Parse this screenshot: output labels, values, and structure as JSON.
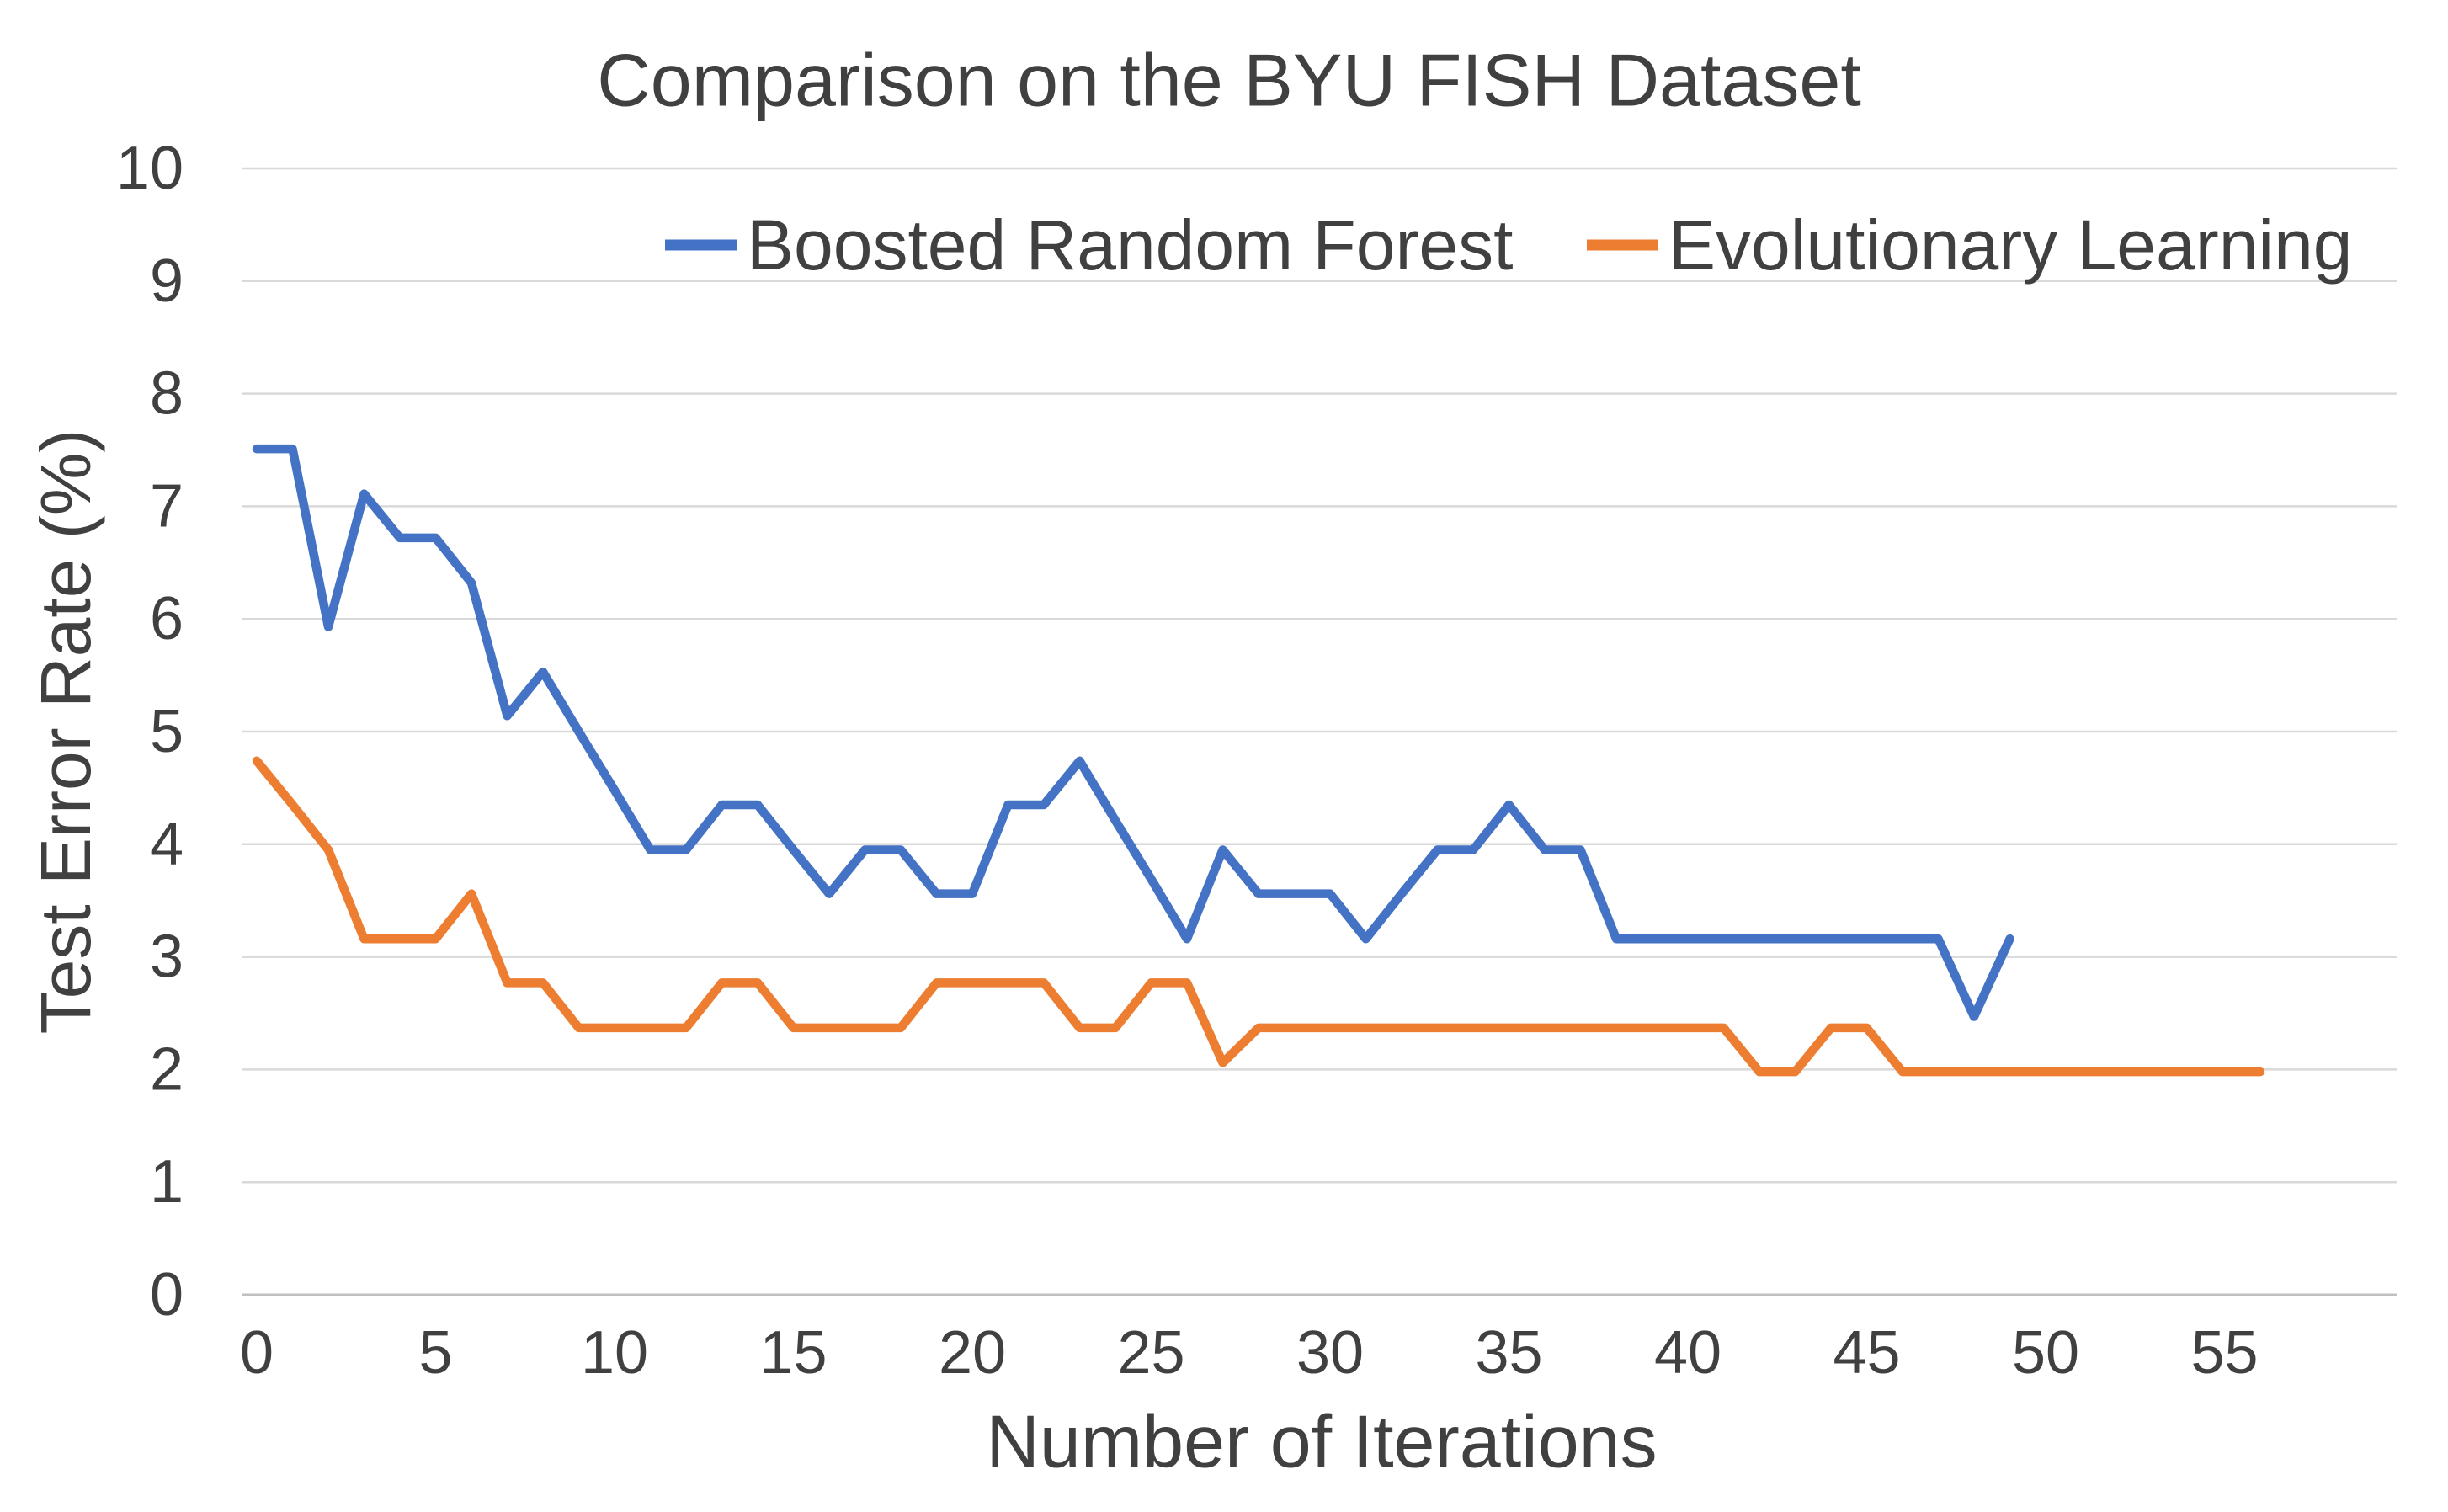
{
  "chart_data": {
    "type": "line",
    "title": "Comparison on the BYU FISH Dataset",
    "xlabel": "Number of Iterations",
    "ylabel": "Test Error Rate (%)",
    "grid": true,
    "legend_position": "top-center-inside",
    "xlim": [
      0,
      57
    ],
    "ylim": [
      0,
      10
    ],
    "x_ticks": [
      0,
      5,
      10,
      15,
      20,
      25,
      30,
      35,
      40,
      45,
      50,
      55
    ],
    "y_ticks": [
      0,
      1,
      2,
      3,
      4,
      5,
      6,
      7,
      8,
      9,
      10
    ],
    "x_unit": "iterations (one data point per iteration, starting at 0)",
    "series": [
      {
        "name": "Boosted Random Forest",
        "color": "#4472C4",
        "x_start": 0,
        "x_step": 1,
        "values": [
          7.51,
          7.51,
          5.93,
          7.11,
          6.72,
          6.72,
          6.32,
          5.14,
          5.53,
          5.0,
          4.48,
          3.95,
          3.95,
          4.35,
          4.35,
          3.95,
          3.56,
          3.95,
          3.95,
          3.56,
          3.56,
          4.35,
          4.35,
          4.74,
          4.21,
          3.69,
          3.16,
          3.95,
          3.56,
          3.56,
          3.56,
          3.16,
          3.56,
          3.95,
          3.95,
          4.35,
          3.95,
          3.95,
          3.16,
          3.16,
          3.16,
          3.16,
          3.16,
          3.16,
          3.16,
          3.16,
          3.16,
          3.16,
          2.47,
          3.16
        ]
      },
      {
        "name": "Evolutionary Learning",
        "color": "#ED7D31",
        "x_start": 0,
        "x_step": 1,
        "values": [
          4.74,
          4.35,
          3.95,
          3.16,
          3.16,
          3.16,
          3.56,
          2.77,
          2.77,
          2.37,
          2.37,
          2.37,
          2.37,
          2.77,
          2.77,
          2.37,
          2.37,
          2.37,
          2.37,
          2.77,
          2.77,
          2.77,
          2.77,
          2.37,
          2.37,
          2.77,
          2.77,
          2.06,
          2.37,
          2.37,
          2.37,
          2.37,
          2.37,
          2.37,
          2.37,
          2.37,
          2.37,
          2.37,
          2.37,
          2.37,
          2.37,
          2.37,
          1.98,
          1.98,
          2.37,
          2.37,
          1.98,
          1.98,
          1.98,
          1.98,
          1.98,
          1.98,
          1.98,
          1.98,
          1.98,
          1.98,
          1.98
        ]
      }
    ]
  },
  "colors": {
    "background": "#FFFFFF",
    "grid": "#D9D9D9",
    "axis_line": "#C0C0C0",
    "text": "#404040"
  }
}
